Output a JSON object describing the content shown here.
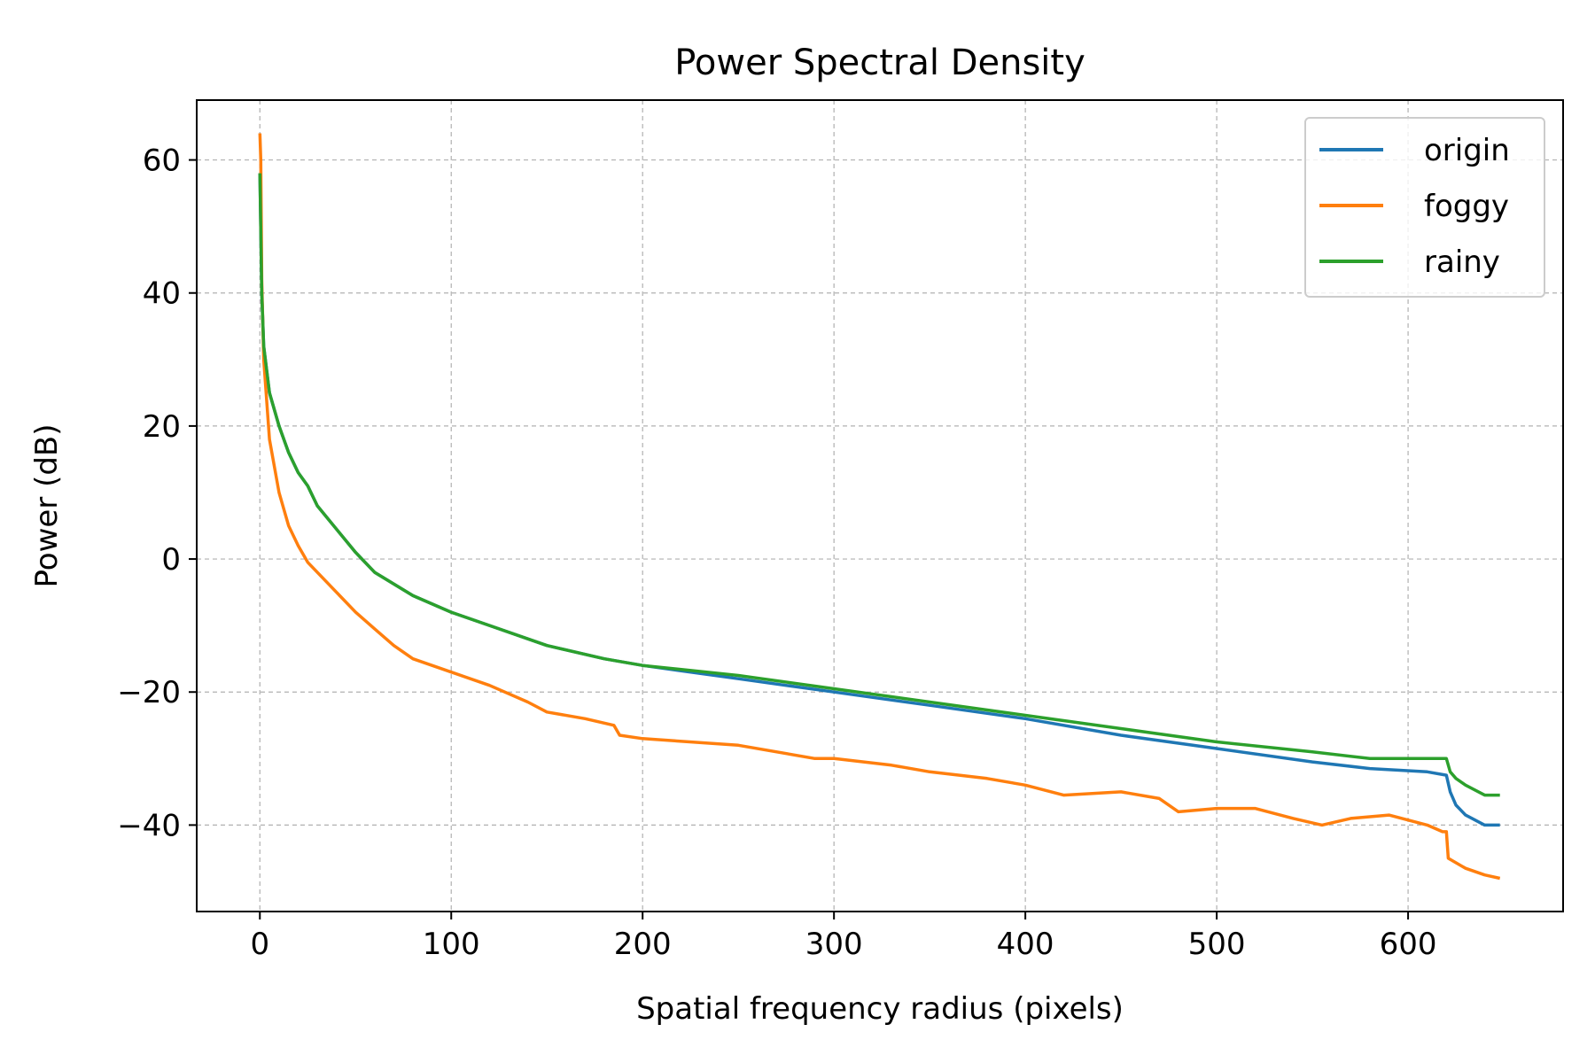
{
  "chart_data": {
    "type": "line",
    "title": "Power Spectral Density",
    "xlabel": "Spatial frequency radius (pixels)",
    "ylabel": "Power (dB)",
    "xlim": [
      -33,
      681
    ],
    "ylim": [
      -53,
      69
    ],
    "xticks": [
      0,
      100,
      200,
      300,
      400,
      500,
      600
    ],
    "yticks": [
      60,
      40,
      20,
      0,
      -20,
      -40
    ],
    "xtick_labels": [
      "0",
      "100",
      "200",
      "300",
      "400",
      "500",
      "600"
    ],
    "ytick_labels": [
      "60",
      "40",
      "20",
      "0",
      "−20",
      "−40"
    ],
    "grid": true,
    "legend_position": "top-right",
    "series": [
      {
        "name": "origin",
        "color": "#1f77b4",
        "points": [
          [
            0,
            58
          ],
          [
            1,
            40
          ],
          [
            2,
            32
          ],
          [
            5,
            25
          ],
          [
            10,
            20
          ],
          [
            15,
            16
          ],
          [
            20,
            13
          ],
          [
            25,
            11
          ],
          [
            30,
            8
          ],
          [
            40,
            4.5
          ],
          [
            50,
            1
          ],
          [
            60,
            -2
          ],
          [
            80,
            -5.5
          ],
          [
            100,
            -8
          ],
          [
            120,
            -10
          ],
          [
            150,
            -13
          ],
          [
            180,
            -15
          ],
          [
            200,
            -16
          ],
          [
            250,
            -18
          ],
          [
            300,
            -20
          ],
          [
            350,
            -22
          ],
          [
            400,
            -24
          ],
          [
            450,
            -26.5
          ],
          [
            500,
            -28.5
          ],
          [
            550,
            -30.5
          ],
          [
            580,
            -31.5
          ],
          [
            610,
            -32
          ],
          [
            620,
            -32.5
          ],
          [
            622,
            -35
          ],
          [
            625,
            -37
          ],
          [
            630,
            -38.5
          ],
          [
            640,
            -40
          ],
          [
            648,
            -40
          ]
        ]
      },
      {
        "name": "foggy",
        "color": "#ff7f0e",
        "points": [
          [
            0,
            64
          ],
          [
            0.5,
            60
          ],
          [
            1,
            42
          ],
          [
            2,
            30
          ],
          [
            5,
            18
          ],
          [
            10,
            10
          ],
          [
            15,
            5
          ],
          [
            20,
            2
          ],
          [
            25,
            -0.5
          ],
          [
            30,
            -2
          ],
          [
            40,
            -5
          ],
          [
            50,
            -8
          ],
          [
            60,
            -10.5
          ],
          [
            70,
            -13
          ],
          [
            80,
            -15
          ],
          [
            100,
            -17
          ],
          [
            120,
            -19
          ],
          [
            140,
            -21.5
          ],
          [
            150,
            -23
          ],
          [
            170,
            -24
          ],
          [
            185,
            -25
          ],
          [
            188,
            -26.5
          ],
          [
            200,
            -27
          ],
          [
            250,
            -28
          ],
          [
            290,
            -30
          ],
          [
            300,
            -30
          ],
          [
            330,
            -31
          ],
          [
            350,
            -32
          ],
          [
            380,
            -33
          ],
          [
            400,
            -34
          ],
          [
            420,
            -35.5
          ],
          [
            450,
            -35
          ],
          [
            470,
            -36
          ],
          [
            480,
            -38
          ],
          [
            500,
            -37.5
          ],
          [
            520,
            -37.5
          ],
          [
            540,
            -39
          ],
          [
            555,
            -40
          ],
          [
            570,
            -39
          ],
          [
            590,
            -38.5
          ],
          [
            610,
            -40
          ],
          [
            618,
            -41
          ],
          [
            620,
            -41
          ],
          [
            621,
            -45
          ],
          [
            630,
            -46.5
          ],
          [
            640,
            -47.5
          ],
          [
            648,
            -48
          ]
        ]
      },
      {
        "name": "rainy",
        "color": "#2ca02c",
        "points": [
          [
            0,
            58
          ],
          [
            1,
            40
          ],
          [
            2,
            32
          ],
          [
            5,
            25
          ],
          [
            10,
            20
          ],
          [
            15,
            16
          ],
          [
            20,
            13
          ],
          [
            25,
            11
          ],
          [
            30,
            8
          ],
          [
            40,
            4.5
          ],
          [
            50,
            1
          ],
          [
            60,
            -2
          ],
          [
            80,
            -5.5
          ],
          [
            100,
            -8
          ],
          [
            120,
            -10
          ],
          [
            150,
            -13
          ],
          [
            180,
            -15
          ],
          [
            200,
            -16
          ],
          [
            250,
            -17.5
          ],
          [
            300,
            -19.5
          ],
          [
            350,
            -21.5
          ],
          [
            400,
            -23.5
          ],
          [
            450,
            -25.5
          ],
          [
            500,
            -27.5
          ],
          [
            550,
            -29
          ],
          [
            580,
            -30
          ],
          [
            610,
            -30
          ],
          [
            620,
            -30
          ],
          [
            622,
            -32
          ],
          [
            625,
            -33
          ],
          [
            630,
            -34
          ],
          [
            640,
            -35.5
          ],
          [
            648,
            -35.5
          ]
        ]
      }
    ]
  }
}
